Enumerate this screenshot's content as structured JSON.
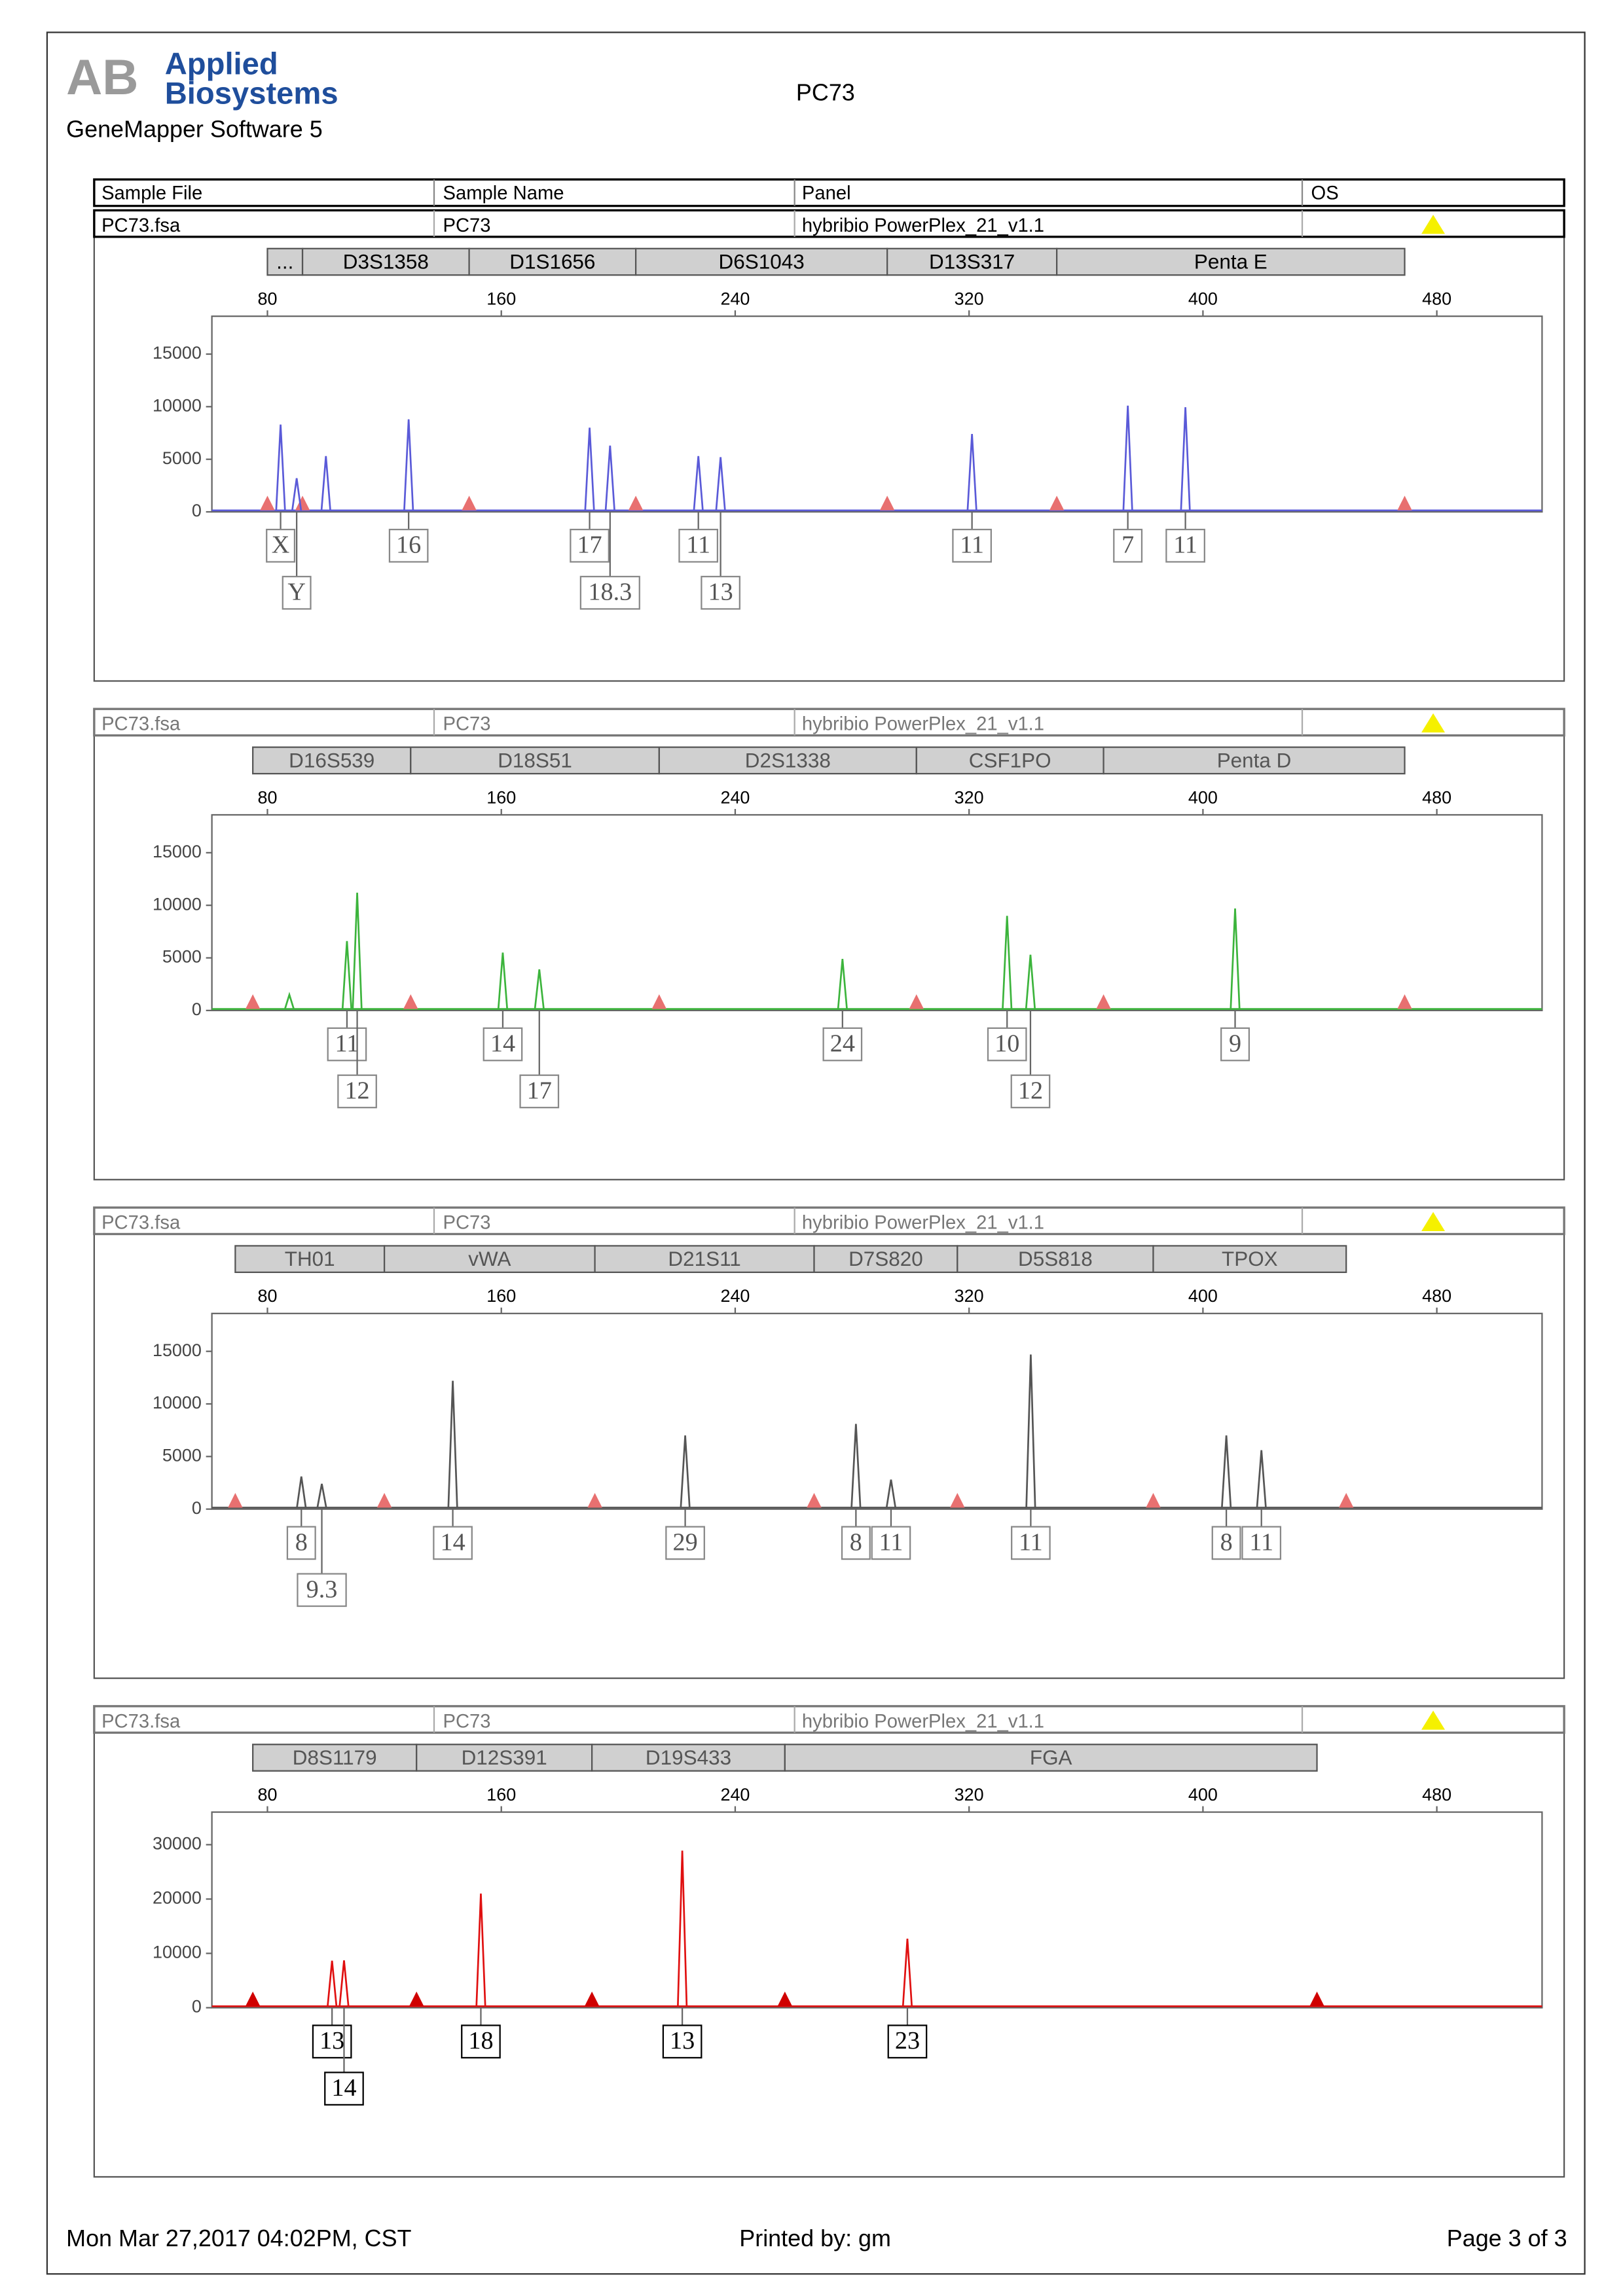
{
  "header": {
    "logo": [
      "Applied",
      "Biosystems"
    ],
    "software": "GeneMapper Software 5",
    "title": "PC73"
  },
  "columns": [
    "Sample File",
    "Sample Name",
    "Panel",
    "OS"
  ],
  "chart_data": [
    {
      "type": "peaks",
      "sample_file": "PC73.fsa",
      "sample_name": "PC73",
      "panel": "hybribio PowerPlex_21_v1.1",
      "color": "#5a5ad8",
      "marker_color": "#e87070",
      "loci": [
        {
          "name": "...",
          "start": 80,
          "end": 92
        },
        {
          "name": "D3S1358",
          "start": 92,
          "end": 149
        },
        {
          "name": "D1S1656",
          "start": 149,
          "end": 206
        },
        {
          "name": "D6S1043",
          "start": 206,
          "end": 292
        },
        {
          "name": "D13S317",
          "start": 292,
          "end": 350
        },
        {
          "name": "Penta E",
          "start": 350,
          "end": 469
        }
      ],
      "markers": [
        80,
        92,
        149,
        206,
        292,
        350,
        469
      ],
      "peaks": {
        "x": [
          84.5,
          90,
          100,
          128.3,
          190.2,
          197.2,
          227.4,
          235,
          321,
          374.3,
          394
        ],
        "values": [
          8300,
          3200,
          5300,
          8800,
          8000,
          6300,
          5300,
          5200,
          7400,
          10100,
          9950
        ],
        "labels": [
          "X",
          "Y",
          null,
          "16",
          "17",
          "18.3",
          "11",
          "13",
          "11",
          "7",
          "11"
        ]
      },
      "xlim": [
        61,
        516
      ],
      "xticks": [
        80,
        160,
        240,
        320,
        400,
        480
      ],
      "ylim": [
        0,
        18600
      ],
      "yticks": [
        0,
        5000,
        10000,
        15000
      ]
    },
    {
      "type": "peaks",
      "sample_file": "PC73.fsa",
      "sample_name": "PC73",
      "panel": "hybribio PowerPlex_21_v1.1",
      "color": "#3cb43c",
      "marker_color": "#e87070",
      "loci": [
        {
          "name": "D16S539",
          "start": 75,
          "end": 129
        },
        {
          "name": "D18S51",
          "start": 129,
          "end": 214
        },
        {
          "name": "D2S1338",
          "start": 214,
          "end": 302
        },
        {
          "name": "CSF1PO",
          "start": 302,
          "end": 366
        },
        {
          "name": "Penta D",
          "start": 366,
          "end": 469
        }
      ],
      "markers": [
        75,
        129,
        214,
        302,
        366,
        469
      ],
      "peaks": {
        "x": [
          87.5,
          107.2,
          110.7,
          160.5,
          173,
          276.7,
          333,
          341,
          411
        ],
        "values": [
          1500,
          6600,
          11200,
          5500,
          3900,
          4900,
          9000,
          5300,
          9700
        ],
        "labels": [
          null,
          "11",
          "12",
          "14",
          "17",
          "24",
          "10",
          "12",
          "9"
        ]
      },
      "xlim": [
        61,
        516
      ],
      "xticks": [
        80,
        160,
        240,
        320,
        400,
        480
      ],
      "ylim": [
        0,
        18600
      ],
      "yticks": [
        0,
        5000,
        10000,
        15000
      ]
    },
    {
      "type": "peaks",
      "sample_file": "PC73.fsa",
      "sample_name": "PC73",
      "panel": "hybribio PowerPlex_21_v1.1",
      "color": "#555555",
      "marker_color": "#e87070",
      "loci": [
        {
          "name": "TH01",
          "start": 69,
          "end": 120
        },
        {
          "name": "vWA",
          "start": 120,
          "end": 192
        },
        {
          "name": "D21S11",
          "start": 192,
          "end": 267
        },
        {
          "name": "D7S820",
          "start": 267,
          "end": 316
        },
        {
          "name": "D5S818",
          "start": 316,
          "end": 383
        },
        {
          "name": "TPOX",
          "start": 383,
          "end": 449
        }
      ],
      "markers": [
        69,
        120,
        192,
        267,
        316,
        383,
        449
      ],
      "peaks": {
        "x": [
          91.6,
          98.6,
          143.4,
          222.9,
          281.3,
          293.3,
          341.1,
          408,
          420
        ],
        "values": [
          3100,
          2400,
          12200,
          7000,
          8100,
          2800,
          14700,
          7000,
          5600
        ],
        "labels": [
          "8",
          "9.3",
          "14",
          "29",
          "8",
          "11",
          "11",
          "8",
          "11"
        ]
      },
      "xlim": [
        61,
        516
      ],
      "xticks": [
        80,
        160,
        240,
        320,
        400,
        480
      ],
      "ylim": [
        0,
        18600
      ],
      "yticks": [
        0,
        5000,
        10000,
        15000
      ]
    },
    {
      "type": "peaks",
      "sample_file": "PC73.fsa",
      "sample_name": "PC73",
      "panel": "hybribio PowerPlex_21_v1.1",
      "color": "#e01010",
      "marker_color": "#d00000",
      "loci": [
        {
          "name": "D8S1179",
          "start": 75,
          "end": 131
        },
        {
          "name": "D12S391",
          "start": 131,
          "end": 191
        },
        {
          "name": "D19S433",
          "start": 191,
          "end": 257
        },
        {
          "name": "FGA",
          "start": 257,
          "end": 439
        }
      ],
      "markers": [
        75,
        131,
        191,
        257,
        439
      ],
      "peaks": {
        "x": [
          102.1,
          106.2,
          153,
          221.9,
          298.9
        ],
        "values": [
          8650,
          8700,
          21000,
          28900,
          12700
        ],
        "labels": [
          "13",
          "14",
          "18",
          "13",
          "23"
        ]
      },
      "xlim": [
        61,
        516
      ],
      "xticks": [
        80,
        160,
        240,
        320,
        400,
        480
      ],
      "ylim": [
        0,
        36000
      ],
      "yticks": [
        0,
        10000,
        20000,
        30000
      ]
    }
  ],
  "footer": {
    "date": "Mon Mar 27,2017 04:02PM, CST",
    "printed_by": "Printed by: gm",
    "page": "Page 3 of 3"
  }
}
